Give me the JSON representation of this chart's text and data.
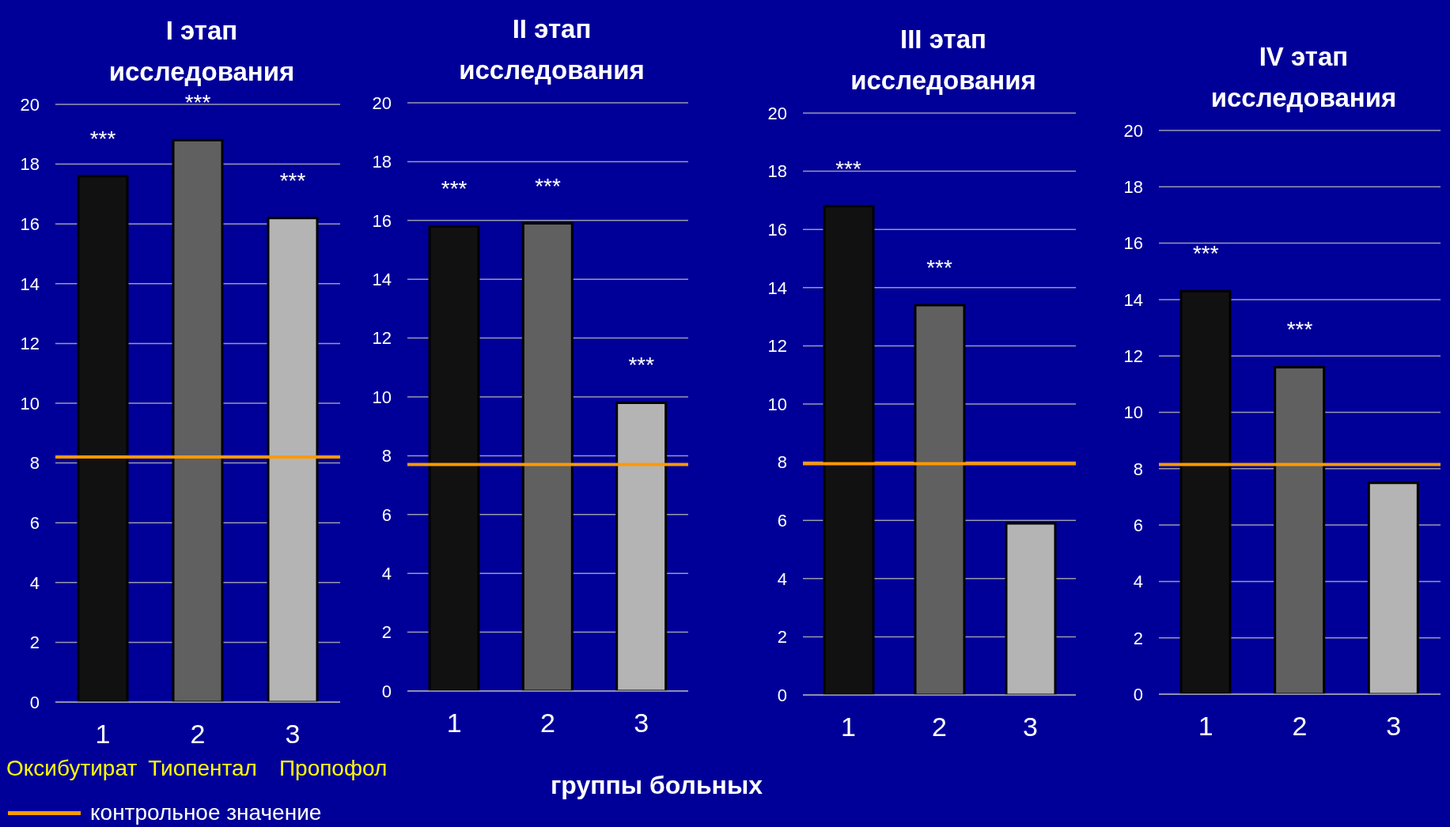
{
  "chart_data": [
    {
      "type": "bar",
      "title": "I этап исследования",
      "categories": [
        "1",
        "2",
        "3"
      ],
      "values": [
        17.6,
        18.8,
        16.2
      ],
      "colors": [
        "#111111",
        "#606060",
        "#b4b4b4"
      ],
      "ylim": [
        0,
        20
      ],
      "yticks": [
        0,
        2,
        4,
        6,
        8,
        10,
        12,
        14,
        16,
        18,
        20
      ],
      "grid": "y",
      "legend": "bottom left",
      "ref_lines": [
        {
          "axis": "y",
          "value": 8.2,
          "label": "контрольное значение",
          "color": "#ff9900"
        }
      ],
      "annotations": [
        "***",
        "***",
        "***",
        "Оксибутират",
        "Тиопентал",
        "Пропофол"
      ]
    },
    {
      "type": "bar",
      "title": "II этап исследования",
      "categories": [
        "1",
        "2",
        "3"
      ],
      "values": [
        15.8,
        15.9,
        9.8
      ],
      "colors": [
        "#111111",
        "#606060",
        "#b4b4b4"
      ],
      "ylim": [
        0,
        20
      ],
      "yticks": [
        0,
        2,
        4,
        6,
        8,
        10,
        12,
        14,
        16,
        18,
        20
      ],
      "grid": "y",
      "xlabel": "группы больных",
      "ref_lines": [
        {
          "axis": "y",
          "value": 7.7,
          "color": "#ff9900"
        }
      ],
      "annotations": [
        "***",
        "***",
        "***"
      ]
    },
    {
      "type": "bar",
      "title": "III этап исследования",
      "categories": [
        "1",
        "2",
        "3"
      ],
      "values": [
        16.8,
        13.4,
        5.9
      ],
      "colors": [
        "#111111",
        "#606060",
        "#b4b4b4"
      ],
      "ylim": [
        0,
        20
      ],
      "yticks": [
        0,
        2,
        4,
        6,
        8,
        10,
        12,
        14,
        16,
        18,
        20
      ],
      "grid": "y",
      "ref_lines": [
        {
          "axis": "y",
          "value": 7.95,
          "color": "#ff9900"
        }
      ],
      "annotations": [
        "***",
        "***"
      ]
    },
    {
      "type": "bar",
      "title": "IV этап исследования",
      "categories": [
        "1",
        "2",
        "3"
      ],
      "values": [
        14.3,
        11.6,
        7.5
      ],
      "colors": [
        "#111111",
        "#606060",
        "#b4b4b4"
      ],
      "ylim": [
        0,
        20
      ],
      "yticks": [
        0,
        2,
        4,
        6,
        8,
        10,
        12,
        14,
        16,
        18,
        20
      ],
      "grid": "y",
      "ref_lines": [
        {
          "axis": "y",
          "value": 8.15,
          "color": "#ff9900"
        }
      ],
      "annotations": [
        "***",
        "***"
      ]
    }
  ]
}
